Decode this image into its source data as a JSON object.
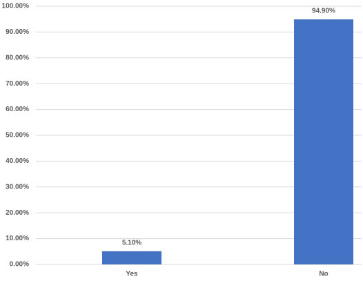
{
  "chart_data": {
    "type": "bar",
    "categories": [
      "Yes",
      "No"
    ],
    "values": [
      5.1,
      94.9
    ],
    "value_labels": [
      "5.10%",
      "94.90%"
    ],
    "color": "#4472c4",
    "ylim": [
      0,
      100
    ],
    "yticks": [
      {
        "value": 0,
        "label": "0.00%"
      },
      {
        "value": 10,
        "label": "10.00%"
      },
      {
        "value": 20,
        "label": "20.00%"
      },
      {
        "value": 30,
        "label": "30.00%"
      },
      {
        "value": 40,
        "label": "40.00%"
      },
      {
        "value": 50,
        "label": "50.00%"
      },
      {
        "value": 60,
        "label": "60.00%"
      },
      {
        "value": 70,
        "label": "70.00%"
      },
      {
        "value": 80,
        "label": "80.00%"
      },
      {
        "value": 90,
        "label": "90.00%"
      },
      {
        "value": 100,
        "label": "100.00%"
      }
    ],
    "grid": true
  }
}
